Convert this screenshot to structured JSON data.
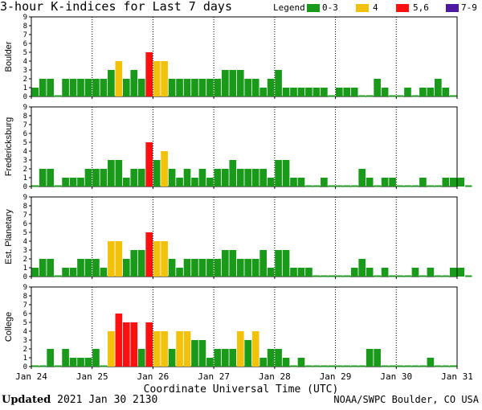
{
  "header": {
    "title": "3-hour K-indices for Last 7 days",
    "legend_label": "Legend:",
    "legend": [
      {
        "label": "0-3",
        "color": "#1a9a1a"
      },
      {
        "label": "4",
        "color": "#f2c20a"
      },
      {
        "label": "5,6",
        "color": "#ff1010"
      },
      {
        "label": "7-9",
        "color": "#4b1aa0"
      }
    ]
  },
  "footer": {
    "updated_label": "Updated",
    "updated_value": "2021 Jan 30 2130",
    "credit": "NOAA/SWPC Boulder, CO USA"
  },
  "chart_data": {
    "type": "bar",
    "xlabel": "Coordinate Universal Time (UTC)",
    "x_ticks": [
      "Jan 24",
      "Jan 25",
      "Jan 26",
      "Jan 27",
      "Jan 28",
      "Jan 29",
      "Jan 30",
      "Jan 31"
    ],
    "ylim": [
      0,
      9
    ],
    "y_ticks": [
      0,
      1,
      2,
      3,
      4,
      5,
      6,
      7,
      8,
      9
    ],
    "color_scale": {
      "0-3": "#1a9a1a",
      "4": "#f2c20a",
      "5,6": "#ff1010",
      "7-9": "#4b1aa0"
    },
    "series": [
      {
        "name": "Boulder",
        "values": [
          1,
          2,
          2,
          0,
          2,
          2,
          2,
          2,
          2,
          2,
          3,
          4,
          2,
          3,
          2,
          5,
          4,
          4,
          2,
          2,
          2,
          2,
          2,
          2,
          2,
          3,
          3,
          3,
          2,
          2,
          1,
          2,
          3,
          1,
          1,
          1,
          1,
          1,
          1,
          0,
          1,
          1,
          1,
          0,
          0,
          2,
          1,
          0,
          0,
          1,
          0,
          1,
          1,
          2,
          1,
          0
        ]
      },
      {
        "name": "Fredericksburg",
        "values": [
          0,
          2,
          2,
          0,
          1,
          1,
          1,
          2,
          2,
          2,
          3,
          3,
          1,
          2,
          2,
          5,
          3,
          4,
          2,
          1,
          2,
          1,
          2,
          1,
          2,
          2,
          3,
          2,
          2,
          2,
          2,
          1,
          3,
          3,
          1,
          1,
          0,
          0,
          1,
          0,
          0,
          0,
          0,
          2,
          1,
          0,
          1,
          1,
          0,
          0,
          0,
          1,
          0,
          0,
          1,
          1,
          1,
          0
        ]
      },
      {
        "name": "Est. Planetary",
        "values": [
          1,
          2,
          2,
          0,
          1,
          1,
          2,
          2,
          2,
          1,
          4,
          4,
          2,
          3,
          3,
          5,
          4,
          4,
          2,
          1,
          2,
          2,
          2,
          2,
          2,
          3,
          3,
          2,
          2,
          2,
          3,
          1,
          3,
          3,
          1,
          1,
          1,
          0,
          0,
          0,
          0,
          0,
          1,
          2,
          1,
          0,
          1,
          0,
          0,
          0,
          1,
          0,
          1,
          0,
          0,
          1,
          1,
          0
        ]
      },
      {
        "name": "College",
        "values": [
          0,
          0,
          2,
          0,
          2,
          1,
          1,
          1,
          2,
          0,
          4,
          6,
          5,
          5,
          2,
          5,
          4,
          4,
          2,
          4,
          4,
          3,
          3,
          1,
          2,
          2,
          2,
          4,
          3,
          4,
          1,
          2,
          2,
          1,
          0,
          1,
          0,
          0,
          0,
          0,
          0,
          0,
          0,
          0,
          2,
          2,
          0,
          0,
          0,
          0,
          0,
          0,
          1,
          0,
          0,
          0
        ]
      }
    ]
  }
}
